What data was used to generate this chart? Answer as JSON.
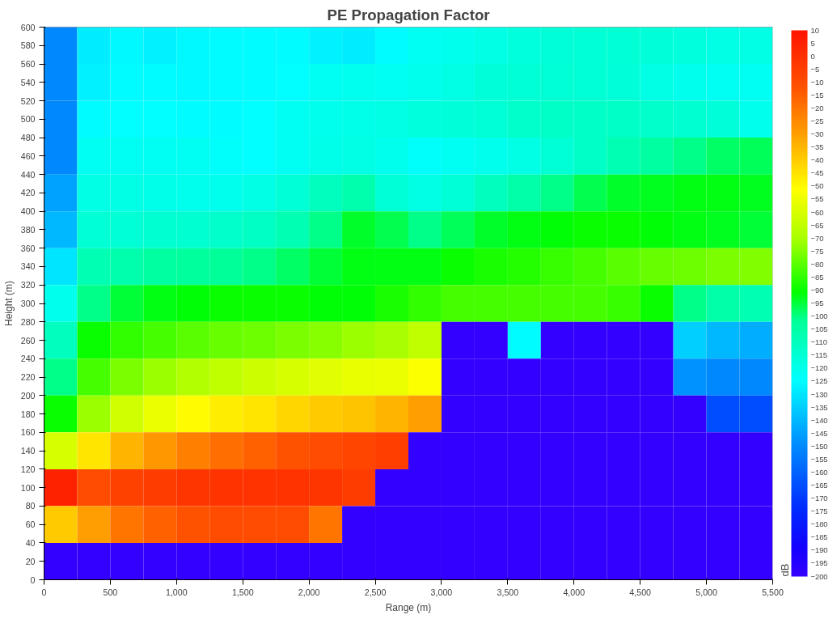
{
  "chart_data": {
    "type": "heatmap",
    "title": "PE Propagation Factor",
    "xlabel": "Range (m)",
    "ylabel": "Height (m)",
    "clabel": "dB",
    "x": [
      125,
      375,
      625,
      875,
      1125,
      1375,
      1625,
      1875,
      2125,
      2375,
      2625,
      2875,
      3125,
      3375,
      3625,
      3875,
      4125,
      4375,
      4625,
      4875,
      5125,
      5375
    ],
    "y": [
      580,
      540,
      500,
      460,
      420,
      380,
      340,
      300,
      260,
      220,
      180,
      140,
      100,
      60,
      20
    ],
    "xlim": [
      0,
      5500
    ],
    "ylim": [
      0,
      600
    ],
    "xticks": [
      0,
      500,
      {
        "value": 1000,
        "label": "1,000"
      },
      {
        "value": 1500,
        "label": "1,500"
      },
      {
        "value": 2000,
        "label": "2,000"
      },
      {
        "value": 2500,
        "label": "2,500"
      },
      {
        "value": 3000,
        "label": "3,000"
      },
      {
        "value": 3500,
        "label": "3,500"
      },
      {
        "value": 4000,
        "label": "4,000"
      },
      {
        "value": 4500,
        "label": "4,500"
      },
      {
        "value": 5000,
        "label": "5,000"
      },
      {
        "value": 5500,
        "label": "5,500"
      }
    ],
    "yticks": [
      0,
      20,
      40,
      60,
      80,
      100,
      120,
      140,
      160,
      180,
      200,
      220,
      240,
      260,
      280,
      300,
      320,
      340,
      360,
      380,
      400,
      420,
      440,
      460,
      480,
      500,
      520,
      540,
      560,
      580,
      600
    ],
    "clim": [
      -200,
      10
    ],
    "cticks": [
      -200,
      -195,
      -190,
      -185,
      -180,
      -175,
      -170,
      -165,
      -160,
      -155,
      -150,
      -145,
      -140,
      -135,
      -130,
      -125,
      -120,
      -115,
      -110,
      -105,
      -100,
      -95,
      -90,
      -85,
      -80,
      -75,
      -70,
      -65,
      -60,
      -55,
      -50,
      -45,
      -40,
      -35,
      -30,
      -25,
      -20,
      -15,
      -10,
      -5,
      0,
      5,
      10
    ],
    "cells": [
      [
        -150,
        -128,
        -126,
        -127,
        -126,
        -125,
        -125,
        -125,
        -127,
        -128,
        -125,
        -122,
        -120,
        -118,
        -117,
        -116,
        -115,
        -115,
        -116,
        -117,
        -118,
        -118
      ],
      [
        -150,
        -127,
        -125,
        -125,
        -126,
        -125,
        -125,
        -124,
        -122,
        -121,
        -122,
        -120,
        -118,
        -116,
        -115,
        -115,
        -115,
        -116,
        -118,
        -120,
        -122,
        -122
      ],
      [
        -150,
        -125,
        -124,
        -124,
        -125,
        -125,
        -124,
        -122,
        -120,
        -119,
        -118,
        -117,
        -116,
        -115,
        -113,
        -112,
        -112,
        -112,
        -113,
        -114,
        -116,
        -120
      ],
      [
        -150,
        -122,
        -122,
        -122,
        -122,
        -123,
        -124,
        -122,
        -119,
        -118,
        -120,
        -123,
        -122,
        -120,
        -118,
        -115,
        -112,
        -108,
        -104,
        -100,
        -98,
        -97
      ],
      [
        -145,
        -118,
        -118,
        -119,
        -120,
        -120,
        -118,
        -115,
        -110,
        -106,
        -115,
        -118,
        -115,
        -110,
        -105,
        -100,
        -96,
        -94,
        -93,
        -92,
        -92,
        -93
      ],
      [
        -140,
        -115,
        -115,
        -114,
        -114,
        -113,
        -111,
        -108,
        -100,
        -94,
        -96,
        -100,
        -97,
        -94,
        -92,
        -91,
        -90,
        -90,
        -91,
        -92,
        -93,
        -95
      ],
      [
        -130,
        -108,
        -106,
        -104,
        -103,
        -102,
        -100,
        -98,
        -95,
        -92,
        -92,
        -92,
        -90,
        -88,
        -86,
        -84,
        -82,
        -80,
        -78,
        -77,
        -76,
        -75
      ],
      [
        -120,
        -100,
        -95,
        -92,
        -91,
        -90,
        -90,
        -90,
        -91,
        -91,
        -88,
        -85,
        -82,
        -82,
        -82,
        -82,
        -82,
        -84,
        -90,
        -100,
        -105,
        -108
      ],
      [
        -110,
        -90,
        -85,
        -82,
        -80,
        -78,
        -77,
        -76,
        -74,
        -72,
        -70,
        -65,
        -200,
        -200,
        -125,
        -200,
        -200,
        -200,
        -200,
        -135,
        -140,
        -142
      ],
      [
        -100,
        -82,
        -76,
        -72,
        -68,
        -65,
        -63,
        -60,
        -58,
        -56,
        -55,
        -52,
        -200,
        -200,
        -200,
        -200,
        -200,
        -200,
        -200,
        -148,
        -150,
        -150
      ],
      [
        -90,
        -72,
        -62,
        -55,
        -50,
        -47,
        -45,
        -42,
        -40,
        -38,
        -35,
        -30,
        -200,
        -200,
        -200,
        -200,
        -200,
        -200,
        -200,
        -200,
        -165,
        -165
      ],
      [
        -60,
        -45,
        -35,
        -28,
        -22,
        -18,
        -15,
        -12,
        -10,
        -8,
        -5,
        -200,
        -200,
        -200,
        -200,
        -200,
        -200,
        -200,
        -200,
        -200,
        -200,
        -200
      ],
      [
        5,
        -10,
        -6,
        -4,
        -2,
        -1,
        -1,
        -1,
        -2,
        -4,
        -200,
        -200,
        -200,
        -200,
        -200,
        -200,
        -200,
        -200,
        -200,
        -200,
        -200,
        -200
      ],
      [
        -40,
        -30,
        -20,
        -15,
        -12,
        -10,
        -10,
        -10,
        -20,
        -200,
        -200,
        -200,
        -200,
        -200,
        -200,
        -200,
        -200,
        -200,
        -200,
        -200,
        -200,
        -200
      ],
      [
        -200,
        -200,
        -200,
        -200,
        -200,
        -200,
        -200,
        -200,
        -200,
        -200,
        -200,
        -200,
        -200,
        -200,
        -200,
        -200,
        -200,
        -200,
        -200,
        -200,
        -200,
        -200
      ]
    ]
  }
}
